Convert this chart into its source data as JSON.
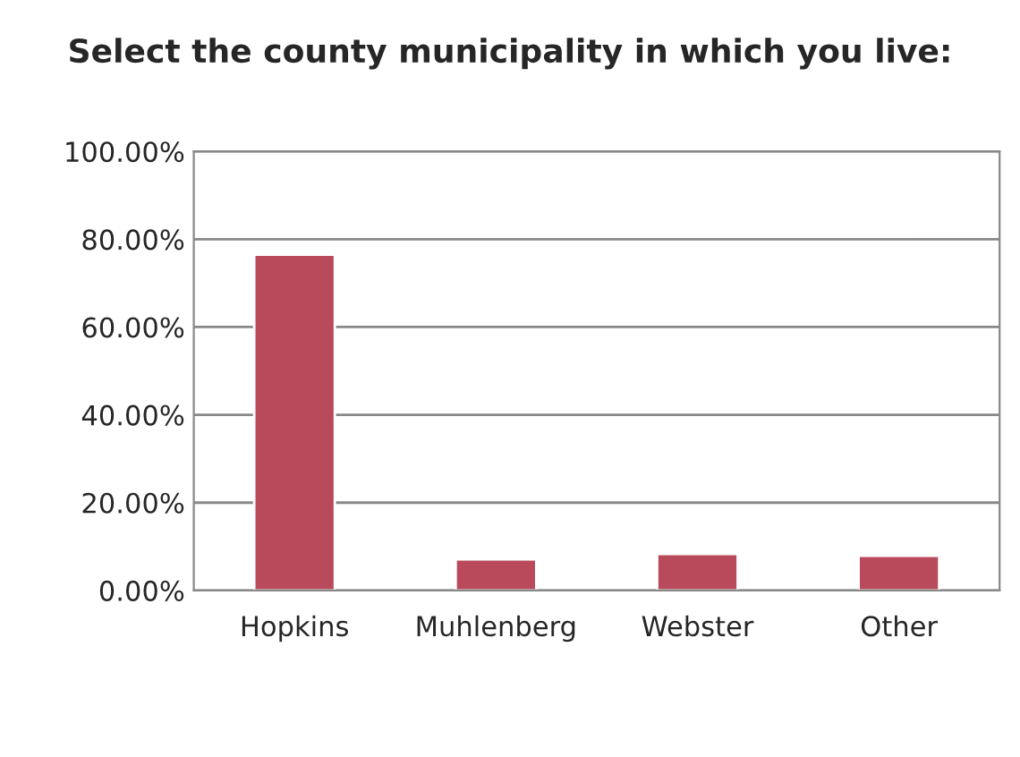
{
  "chart_data": {
    "type": "bar",
    "title": "Select the county municipality in which you live:",
    "categories": [
      "Hopkins",
      "Muhlenberg",
      "Webster",
      "Other"
    ],
    "values": [
      76.5,
      7.1,
      8.3,
      7.9
    ],
    "color": "#b84a5c",
    "ylim": [
      0,
      100
    ],
    "yticks": [
      {
        "value": 0,
        "label": "0.00%"
      },
      {
        "value": 20,
        "label": "20.00%"
      },
      {
        "value": 40,
        "label": "40.00%"
      },
      {
        "value": 60,
        "label": "60.00%"
      },
      {
        "value": 80,
        "label": "80.00%"
      },
      {
        "value": 100,
        "label": "100.00%"
      }
    ],
    "grid": "y"
  }
}
